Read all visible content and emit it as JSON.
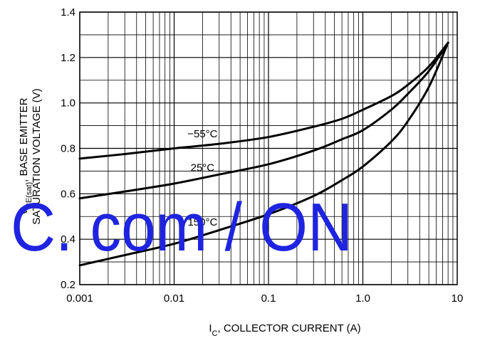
{
  "chart_data": {
    "type": "line",
    "xscale": "log",
    "xlim": [
      0.001,
      10
    ],
    "ylim": [
      0.2,
      1.4
    ],
    "grid": true,
    "xlabel": {
      "main": "I",
      "sub": "C",
      "rest": ", COLLECTOR CURRENT (A)"
    },
    "ylabel": {
      "line1": {
        "main": "V",
        "sub": "BE(sat)",
        "rest": ", BASE EMITTER"
      },
      "line2": "SATURATION VOLTAGE (V)"
    },
    "x_ticks": [
      {
        "value": 0.001,
        "label": "0.001"
      },
      {
        "value": 0.01,
        "label": "0.01"
      },
      {
        "value": 0.1,
        "label": "0.1"
      },
      {
        "value": 1,
        "label": "1.0"
      },
      {
        "value": 10,
        "label": "10"
      }
    ],
    "y_ticks": [
      {
        "value": 0.2,
        "label": "0.2"
      },
      {
        "value": 0.4,
        "label": "0.4"
      },
      {
        "value": 0.6,
        "label": "0.6"
      },
      {
        "value": 0.8,
        "label": "0.8"
      },
      {
        "value": 1.0,
        "label": "1.0"
      },
      {
        "value": 1.2,
        "label": "1.2"
      },
      {
        "value": 1.4,
        "label": "1.4"
      }
    ],
    "series": [
      {
        "name": "−55°C",
        "label_at": [
          0.02,
          0.865
        ],
        "points": [
          [
            0.001,
            0.755
          ],
          [
            0.003,
            0.775
          ],
          [
            0.01,
            0.8
          ],
          [
            0.03,
            0.82
          ],
          [
            0.1,
            0.85
          ],
          [
            0.3,
            0.895
          ],
          [
            0.6,
            0.93
          ],
          [
            1,
            0.97
          ],
          [
            2,
            1.03
          ],
          [
            3,
            1.08
          ],
          [
            5,
            1.16
          ],
          [
            8,
            1.265
          ]
        ]
      },
      {
        "name": "25°C",
        "label_at": [
          0.02,
          0.715
        ],
        "points": [
          [
            0.001,
            0.58
          ],
          [
            0.003,
            0.61
          ],
          [
            0.01,
            0.645
          ],
          [
            0.03,
            0.685
          ],
          [
            0.1,
            0.73
          ],
          [
            0.3,
            0.79
          ],
          [
            0.6,
            0.84
          ],
          [
            1,
            0.88
          ],
          [
            2,
            0.97
          ],
          [
            3,
            1.04
          ],
          [
            5,
            1.14
          ],
          [
            8,
            1.265
          ]
        ]
      },
      {
        "name": "150°C",
        "label_at": [
          0.02,
          0.475
        ],
        "points": [
          [
            0.001,
            0.285
          ],
          [
            0.003,
            0.33
          ],
          [
            0.01,
            0.38
          ],
          [
            0.03,
            0.44
          ],
          [
            0.1,
            0.51
          ],
          [
            0.3,
            0.59
          ],
          [
            0.6,
            0.66
          ],
          [
            1,
            0.72
          ],
          [
            2,
            0.83
          ],
          [
            3,
            0.92
          ],
          [
            5,
            1.07
          ],
          [
            8,
            1.265
          ]
        ]
      }
    ]
  },
  "watermark": {
    "text": "C. com / ON",
    "color": "#1f24e0"
  }
}
